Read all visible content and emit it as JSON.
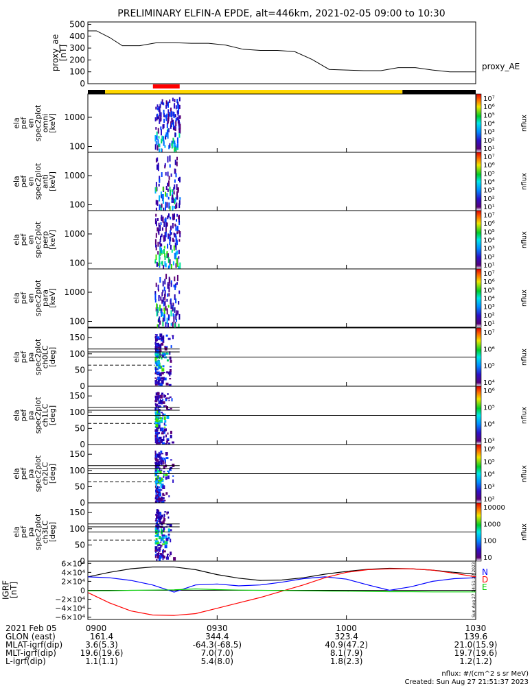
{
  "title": "PRELIMINARY ELFIN-A EPDE, alt=446km, 2021-02-05 09:00 to 10:30",
  "chart_data": [
    {
      "type": "line",
      "ylabel_lines": [
        "proxy_ae",
        "[nT]"
      ],
      "series_label": "proxy_AE",
      "yticks": [
        0,
        100,
        200,
        300,
        400,
        500
      ],
      "ylim": [
        0,
        520
      ],
      "x_minutes": [
        0,
        2,
        5,
        8,
        12,
        16,
        20,
        24,
        28,
        32,
        36,
        40,
        44,
        48,
        52,
        56,
        60,
        64,
        68,
        72,
        76,
        80,
        84,
        88,
        90
      ],
      "values": [
        445,
        445,
        390,
        320,
        320,
        345,
        345,
        340,
        340,
        325,
        290,
        280,
        280,
        270,
        205,
        120,
        115,
        110,
        110,
        135,
        135,
        115,
        100,
        100,
        100
      ]
    },
    {
      "type": "bar",
      "description_bar": "spacecraft science zone",
      "segments": [
        {
          "start": 0,
          "end": 4,
          "color": "#000000"
        },
        {
          "start": 4,
          "end": 73,
          "color": "#ffd700"
        },
        {
          "start": 73,
          "end": 90,
          "color": "#000000"
        }
      ],
      "marker": {
        "start": 15.1,
        "end": 21.3,
        "color": "#ff0000"
      }
    }
  ],
  "spec_panels": [
    {
      "label_lines": [
        "ela",
        "pef",
        "en",
        "spec2plot",
        "omni",
        "[keV]"
      ],
      "yticks": [
        "1000",
        "100"
      ],
      "cb_ticks": [
        "10⁷",
        "10⁶",
        "10⁵",
        "10⁴",
        "10³",
        "10²",
        "10¹"
      ],
      "cb_label": "nflux"
    },
    {
      "label_lines": [
        "ela",
        "pef",
        "en",
        "spec2plot",
        "anti",
        "[keV]"
      ],
      "yticks": [
        "1000",
        "100"
      ],
      "cb_ticks": [
        "10⁷",
        "10⁶",
        "10⁵",
        "10⁴",
        "10³",
        "10²",
        "10¹"
      ],
      "cb_label": "nflux"
    },
    {
      "label_lines": [
        "ela",
        "pef",
        "en",
        "spec2plot",
        "perp",
        "[keV]"
      ],
      "yticks": [
        "1000",
        "100"
      ],
      "cb_ticks": [
        "10⁷",
        "10⁶",
        "10⁵",
        "10⁴",
        "10³",
        "10²",
        "10¹"
      ],
      "cb_label": "nflux"
    },
    {
      "label_lines": [
        "ela",
        "pef",
        "en",
        "spec2plot",
        "para",
        "[keV]"
      ],
      "yticks": [
        "1000",
        "100"
      ],
      "cb_ticks": [
        "10⁷",
        "10⁶",
        "10⁵",
        "10⁴",
        "10³",
        "10²",
        "10¹"
      ],
      "cb_label": "nflux"
    },
    {
      "label_lines": [
        "ela",
        "pef",
        "pa",
        "spec2plot",
        "ch0LC",
        "[deg]"
      ],
      "yticks": [
        "150",
        "100",
        "50",
        "0"
      ],
      "cb_ticks": [
        "10⁷",
        "10⁶",
        "10⁵",
        "10⁴"
      ],
      "cb_label": "nflux"
    },
    {
      "label_lines": [
        "ela",
        "pef",
        "pa",
        "spec2plot",
        "ch1LC",
        "[deg]"
      ],
      "yticks": [
        "150",
        "100",
        "50",
        "0"
      ],
      "cb_ticks": [
        "10⁶",
        "10⁵",
        "10⁴",
        "10³"
      ],
      "cb_label": "nflux"
    },
    {
      "label_lines": [
        "ela",
        "pef",
        "pa",
        "spec2plot",
        "ch2LC",
        "[deg]"
      ],
      "yticks": [
        "150",
        "100",
        "50",
        "0"
      ],
      "cb_ticks": [
        "10⁶",
        "10⁵",
        "10⁴",
        "10³",
        "10²"
      ],
      "cb_label": "nflux"
    },
    {
      "label_lines": [
        "ela",
        "pef",
        "pa",
        "spec2plot",
        "ch3LC",
        "[deg]"
      ],
      "yticks": [
        "150",
        "100",
        "50",
        "0"
      ],
      "cb_ticks": [
        "10000",
        "1000",
        "100",
        "10"
      ],
      "cb_label": "nflux"
    }
  ],
  "igrf": {
    "ylabel_lines": [
      "IGRF",
      "[nT]"
    ],
    "yticks": [
      "6×10⁴",
      "4×10⁴",
      "2×10⁴",
      "0",
      "−2×10⁴",
      "−4×10⁴",
      "−6×10⁴"
    ],
    "legend": [
      {
        "label": "N",
        "color": "#0000ff"
      },
      {
        "label": "D",
        "color": "#ff0000"
      },
      {
        "label": "E",
        "color": "#00cc00"
      }
    ],
    "stamp": "Sun Aug 27 14:51:37 2023",
    "x_minutes": [
      0,
      5,
      10,
      15,
      20,
      25,
      30,
      35,
      40,
      45,
      50,
      55,
      60,
      65,
      70,
      75,
      80,
      85,
      90
    ],
    "series": [
      {
        "name": "total",
        "color": "#000000",
        "values": [
          30000,
          40000,
          48000,
          52000,
          52000,
          46000,
          35000,
          27000,
          22000,
          23000,
          28000,
          36000,
          42000,
          47000,
          49000,
          48000,
          45000,
          40000,
          36000
        ]
      },
      {
        "name": "N",
        "color": "#0000ff",
        "values": [
          30000,
          28000,
          22000,
          12000,
          -4000,
          12000,
          14000,
          10000,
          12000,
          18000,
          26000,
          30000,
          25000,
          12000,
          0,
          8000,
          20000,
          26000,
          28000
        ]
      },
      {
        "name": "D",
        "color": "#ff0000",
        "values": [
          -5000,
          -28000,
          -46000,
          -55000,
          -56000,
          -52000,
          -40000,
          -28000,
          -16000,
          -2000,
          12000,
          28000,
          40000,
          46000,
          48000,
          48000,
          45000,
          38000,
          30000
        ]
      },
      {
        "name": "E",
        "color": "#00cc00",
        "values": [
          -1000,
          -1000,
          0,
          500,
          1000,
          3000,
          1500,
          500,
          0,
          -500,
          -1000,
          -1500,
          -2000,
          -2500,
          -3000,
          -3000,
          -3500,
          -3500,
          -3500
        ]
      }
    ]
  },
  "x_axis": {
    "tick_labels": [
      "0900",
      "0930",
      "1000",
      "1030"
    ],
    "date_label": "2021 Feb 05"
  },
  "ephem": [
    {
      "label": "GLON (east)",
      "values": [
        "161.4",
        "344.4",
        "323.4",
        "139.6"
      ]
    },
    {
      "label": "MLAT-igrf(dip)",
      "values": [
        "3.6(5.3)",
        "-64.3(-68.5)",
        "40.9(47.2)",
        "21.0(15.9)"
      ]
    },
    {
      "label": "MLT-igrf(dip)",
      "values": [
        "19.6(19.6)",
        "7.0(7.0)",
        "8.1(7.9)",
        "19.7(19.6)"
      ]
    },
    {
      "label": "L-igrf(dip)",
      "values": [
        "1.1(1.1)",
        "5.4(8.0)",
        "1.8(2.3)",
        "1.2(1.2)"
      ]
    }
  ],
  "footer": {
    "units": "nflux: #/(cm^2 s sr MeV)",
    "created": "Created: Sun Aug 27 21:51:37 2023"
  }
}
